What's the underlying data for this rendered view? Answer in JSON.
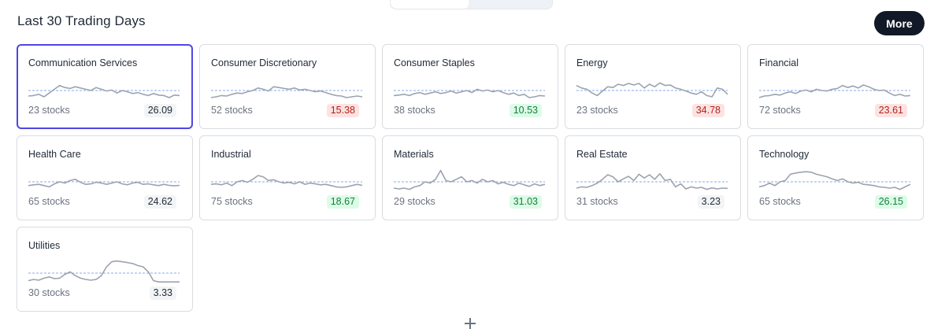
{
  "header": {
    "title": "Last 30 Trading Days",
    "more_label": "More"
  },
  "colors": {
    "accent": "#4f46e5",
    "sparkline": "#9ca3af",
    "baseline": "#8aa9e8",
    "negative_bg": "#fde2e2",
    "negative_text": "#b42318",
    "positive_bg": "#dcfce7",
    "positive_text": "#15803d"
  },
  "sectors": [
    {
      "name": "Communication Services",
      "stocks": "23 stocks",
      "value": "26.09",
      "trend": "neutral",
      "selected": true,
      "spark": [
        0.28,
        0.3,
        0.35,
        0.25,
        0.4,
        0.55,
        0.7,
        0.62,
        0.58,
        0.65,
        0.6,
        0.55,
        0.5,
        0.62,
        0.55,
        0.48,
        0.52,
        0.4,
        0.5,
        0.45,
        0.38,
        0.42,
        0.35,
        0.3,
        0.38,
        0.32,
        0.3,
        0.22,
        0.32,
        0.3
      ],
      "baseline": 0.5
    },
    {
      "name": "Consumer Discretionary",
      "stocks": "52 stocks",
      "value": "15.38",
      "trend": "neg",
      "selected": false,
      "spark": [
        0.22,
        0.25,
        0.3,
        0.28,
        0.35,
        0.4,
        0.38,
        0.45,
        0.5,
        0.6,
        0.55,
        0.48,
        0.65,
        0.62,
        0.58,
        0.55,
        0.6,
        0.52,
        0.55,
        0.5,
        0.45,
        0.48,
        0.42,
        0.35,
        0.3,
        0.28,
        0.22,
        0.25,
        0.28,
        0.25
      ],
      "baseline": 0.5
    },
    {
      "name": "Consumer Staples",
      "stocks": "38 stocks",
      "value": "10.53",
      "trend": "pos",
      "selected": false,
      "spark": [
        0.3,
        0.32,
        0.35,
        0.3,
        0.38,
        0.42,
        0.35,
        0.4,
        0.45,
        0.38,
        0.42,
        0.48,
        0.4,
        0.45,
        0.5,
        0.42,
        0.55,
        0.48,
        0.52,
        0.45,
        0.5,
        0.42,
        0.35,
        0.4,
        0.3,
        0.35,
        0.22,
        0.25,
        0.3,
        0.28
      ],
      "baseline": 0.5
    },
    {
      "name": "Energy",
      "stocks": "23 stocks",
      "value": "34.78",
      "trend": "neg",
      "selected": false,
      "spark": [
        0.7,
        0.6,
        0.55,
        0.4,
        0.3,
        0.48,
        0.65,
        0.62,
        0.75,
        0.7,
        0.78,
        0.72,
        0.78,
        0.6,
        0.75,
        0.65,
        0.8,
        0.7,
        0.72,
        0.6,
        0.55,
        0.48,
        0.4,
        0.35,
        0.45,
        0.3,
        0.25,
        0.6,
        0.55,
        0.35
      ],
      "baseline": 0.5
    },
    {
      "name": "Financial",
      "stocks": "72 stocks",
      "value": "23.61",
      "trend": "neg",
      "selected": false,
      "spark": [
        0.22,
        0.28,
        0.3,
        0.35,
        0.32,
        0.4,
        0.45,
        0.38,
        0.48,
        0.52,
        0.45,
        0.55,
        0.5,
        0.48,
        0.55,
        0.58,
        0.7,
        0.62,
        0.68,
        0.6,
        0.72,
        0.65,
        0.55,
        0.5,
        0.52,
        0.4,
        0.3,
        0.35,
        0.28,
        0.3
      ],
      "baseline": 0.5
    },
    {
      "name": "Health Care",
      "stocks": "65 stocks",
      "value": "24.62",
      "trend": "neutral",
      "selected": false,
      "spark": [
        0.35,
        0.38,
        0.4,
        0.35,
        0.3,
        0.42,
        0.5,
        0.45,
        0.55,
        0.6,
        0.48,
        0.4,
        0.42,
        0.48,
        0.45,
        0.4,
        0.45,
        0.5,
        0.42,
        0.38,
        0.45,
        0.48,
        0.4,
        0.42,
        0.38,
        0.35,
        0.4,
        0.36,
        0.34,
        0.36
      ],
      "baseline": 0.5
    },
    {
      "name": "Industrial",
      "stocks": "75 stocks",
      "value": "18.67",
      "trend": "pos",
      "selected": false,
      "spark": [
        0.4,
        0.42,
        0.38,
        0.45,
        0.35,
        0.5,
        0.55,
        0.48,
        0.6,
        0.75,
        0.7,
        0.55,
        0.58,
        0.5,
        0.45,
        0.48,
        0.42,
        0.5,
        0.4,
        0.45,
        0.42,
        0.38,
        0.4,
        0.35,
        0.3,
        0.28,
        0.3,
        0.35,
        0.4,
        0.36
      ],
      "baseline": 0.5
    },
    {
      "name": "Materials",
      "stocks": "29 stocks",
      "value": "31.03",
      "trend": "pos",
      "selected": false,
      "spark": [
        0.25,
        0.22,
        0.25,
        0.2,
        0.3,
        0.35,
        0.5,
        0.45,
        0.6,
        0.95,
        0.55,
        0.5,
        0.6,
        0.7,
        0.5,
        0.55,
        0.45,
        0.6,
        0.5,
        0.55,
        0.42,
        0.48,
        0.4,
        0.35,
        0.45,
        0.38,
        0.32,
        0.42,
        0.35,
        0.4
      ],
      "baseline": 0.5
    },
    {
      "name": "Real Estate",
      "stocks": "31 stocks",
      "value": "3.23",
      "trend": "neutral",
      "selected": false,
      "spark": [
        0.25,
        0.3,
        0.28,
        0.35,
        0.45,
        0.6,
        0.78,
        0.7,
        0.5,
        0.62,
        0.72,
        0.55,
        0.8,
        0.65,
        0.78,
        0.6,
        0.82,
        0.55,
        0.6,
        0.3,
        0.42,
        0.22,
        0.3,
        0.25,
        0.28,
        0.2,
        0.26,
        0.22,
        0.25,
        0.24
      ],
      "baseline": 0.5
    },
    {
      "name": "Technology",
      "stocks": "65 stocks",
      "value": "26.15",
      "trend": "pos",
      "selected": false,
      "spark": [
        0.3,
        0.35,
        0.45,
        0.35,
        0.5,
        0.55,
        0.8,
        0.85,
        0.88,
        0.9,
        0.88,
        0.8,
        0.75,
        0.7,
        0.62,
        0.55,
        0.62,
        0.5,
        0.45,
        0.48,
        0.4,
        0.38,
        0.35,
        0.3,
        0.28,
        0.25,
        0.28,
        0.2,
        0.3,
        0.4
      ],
      "baseline": 0.5
    },
    {
      "name": "Utilities",
      "stocks": "30 stocks",
      "value": "3.33",
      "trend": "neutral",
      "selected": false,
      "spark": [
        0.2,
        0.25,
        0.22,
        0.3,
        0.35,
        0.28,
        0.3,
        0.45,
        0.55,
        0.4,
        0.3,
        0.25,
        0.22,
        0.25,
        0.4,
        0.75,
        0.95,
        0.98,
        0.95,
        0.92,
        0.88,
        0.8,
        0.75,
        0.55,
        0.2,
        0.15,
        0.15,
        0.15,
        0.15,
        0.15
      ],
      "baseline": 0.5
    }
  ]
}
